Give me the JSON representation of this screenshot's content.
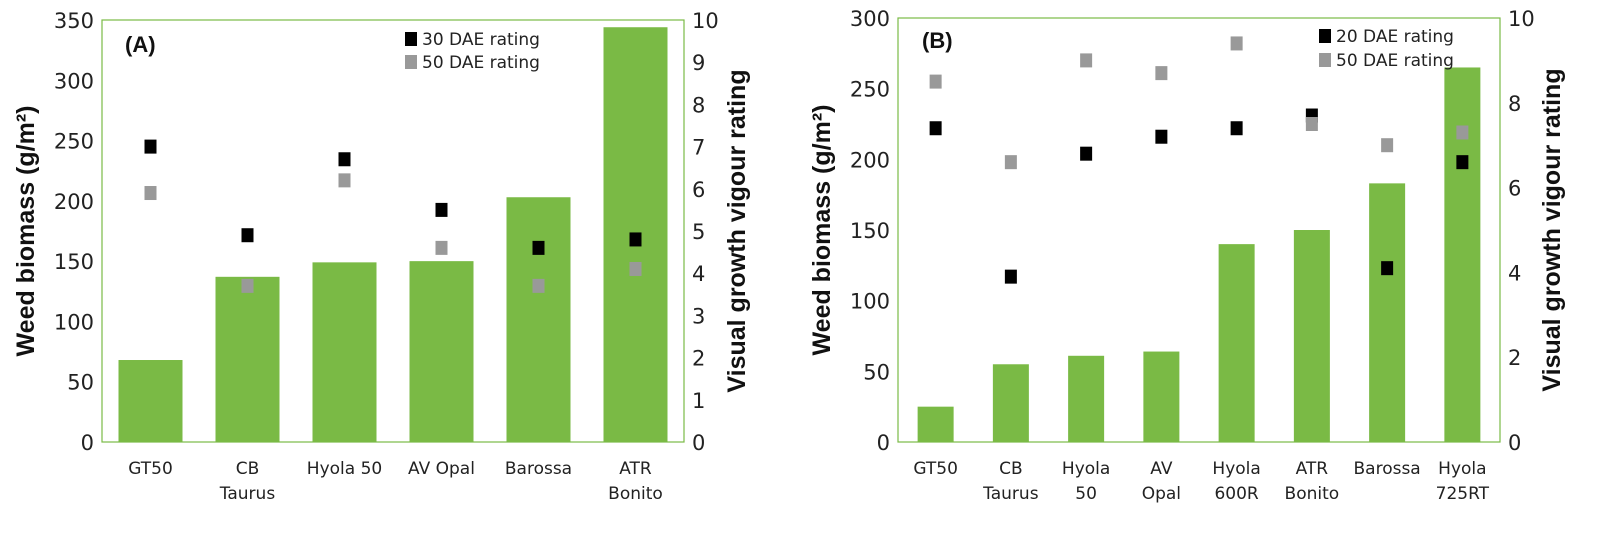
{
  "colors": {
    "bar": "#7aba45",
    "axis": "#7aba45",
    "rating1": "#000000",
    "rating2": "#999999"
  },
  "chart_data": [
    {
      "type": "bar",
      "panel_label": "(A)",
      "categories": [
        [
          "GT50"
        ],
        [
          "CB",
          "Taurus"
        ],
        [
          "Hyola 50"
        ],
        [
          "AV Opal"
        ],
        [
          "Barossa"
        ],
        [
          "ATR",
          "Bonito"
        ]
      ],
      "ylabel": "Weed biomass (g/m²)",
      "y2label": "Visual growth vigour rating",
      "ylim": [
        0,
        350
      ],
      "y2lim": [
        0,
        10
      ],
      "yticks": [
        0,
        50,
        100,
        150,
        200,
        250,
        300,
        350
      ],
      "y2ticks": [
        0,
        1,
        2,
        3,
        4,
        5,
        6,
        7,
        8,
        9,
        10
      ],
      "legend_position": "top-right",
      "biomass": [
        68,
        137,
        149,
        150,
        203,
        344
      ],
      "series": [
        {
          "name": "30 DAE rating",
          "axis": "right",
          "values": [
            7.0,
            4.9,
            6.7,
            5.5,
            4.6,
            4.8
          ]
        },
        {
          "name": "50 DAE rating",
          "axis": "right",
          "values": [
            5.9,
            3.7,
            6.2,
            4.6,
            3.7,
            4.1
          ]
        }
      ]
    },
    {
      "type": "bar",
      "panel_label": "(B)",
      "categories": [
        [
          "GT50"
        ],
        [
          "CB",
          "Taurus"
        ],
        [
          "Hyola",
          "50"
        ],
        [
          "AV",
          "Opal"
        ],
        [
          "Hyola",
          "600R"
        ],
        [
          "ATR",
          "Bonito"
        ],
        [
          "Barossa"
        ],
        [
          "Hyola",
          "725RT"
        ]
      ],
      "ylabel": "Weed biomass (g/m²)",
      "y2label": "Visual growth vigour rating",
      "ylim": [
        0,
        300
      ],
      "y2lim": [
        0,
        10
      ],
      "yticks": [
        0,
        50,
        100,
        150,
        200,
        250,
        300
      ],
      "y2ticks": [
        0,
        2,
        4,
        6,
        8,
        10
      ],
      "legend_position": "top-right",
      "biomass": [
        25,
        55,
        61,
        64,
        140,
        150,
        183,
        265
      ],
      "series": [
        {
          "name": "20 DAE rating",
          "axis": "right",
          "values": [
            7.4,
            3.9,
            6.8,
            7.2,
            7.4,
            7.7,
            4.1,
            6.6
          ]
        },
        {
          "name": "50 DAE rating",
          "axis": "right",
          "values": [
            8.5,
            6.6,
            9.0,
            8.7,
            9.4,
            7.5,
            7.0,
            7.3
          ]
        }
      ]
    }
  ]
}
